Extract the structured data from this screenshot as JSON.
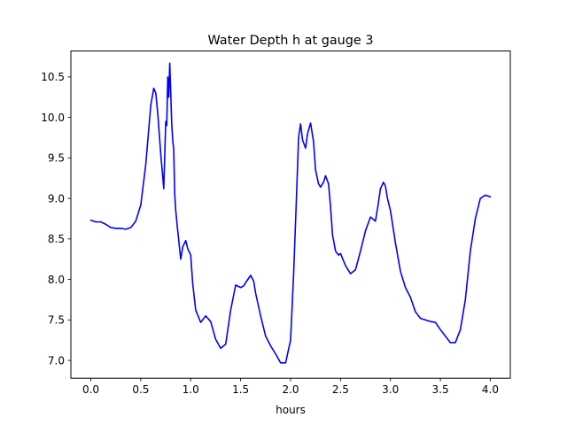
{
  "chart_data": {
    "type": "line",
    "title": "Water Depth h at gauge 3",
    "xlabel": "hours",
    "ylabel": "",
    "xlim": [
      -0.2,
      4.2
    ],
    "ylim": [
      6.78,
      10.82
    ],
    "xticks": [
      0.0,
      0.5,
      1.0,
      1.5,
      2.0,
      2.5,
      3.0,
      3.5,
      4.0
    ],
    "xtick_labels": [
      "0.0",
      "0.5",
      "1.0",
      "1.5",
      "2.0",
      "2.5",
      "3.0",
      "3.5",
      "4.0"
    ],
    "yticks": [
      7.0,
      7.5,
      8.0,
      8.5,
      9.0,
      9.5,
      10.0,
      10.5
    ],
    "ytick_labels": [
      "7.0",
      "7.5",
      "8.0",
      "8.5",
      "9.0",
      "9.5",
      "10.0",
      "10.5"
    ],
    "grid": false,
    "series": [
      {
        "color": "#0000ff",
        "x": [
          0.0,
          0.05,
          0.1,
          0.15,
          0.2,
          0.25,
          0.3,
          0.35,
          0.4,
          0.45,
          0.5,
          0.55,
          0.6,
          0.63,
          0.65,
          0.67,
          0.7,
          0.73,
          0.75,
          0.76,
          0.77,
          0.78,
          0.79,
          0.8,
          0.81,
          0.82,
          0.83,
          0.84,
          0.85,
          0.87,
          0.9,
          0.92,
          0.95,
          0.97,
          1.0,
          1.02,
          1.05,
          1.1,
          1.15,
          1.2,
          1.25,
          1.3,
          1.35,
          1.4,
          1.45,
          1.5,
          1.53,
          1.55,
          1.6,
          1.63,
          1.65,
          1.7,
          1.75,
          1.8,
          1.85,
          1.9,
          1.95,
          2.0,
          2.03,
          2.06,
          2.08,
          2.1,
          2.12,
          2.15,
          2.17,
          2.2,
          2.23,
          2.25,
          2.28,
          2.3,
          2.33,
          2.35,
          2.38,
          2.4,
          2.42,
          2.45,
          2.48,
          2.5,
          2.55,
          2.6,
          2.65,
          2.7,
          2.75,
          2.8,
          2.85,
          2.88,
          2.9,
          2.93,
          2.95,
          2.97,
          3.0,
          3.05,
          3.1,
          3.15,
          3.2,
          3.25,
          3.3,
          3.35,
          3.4,
          3.45,
          3.5,
          3.55,
          3.6,
          3.65,
          3.7,
          3.75,
          3.8,
          3.85,
          3.9,
          3.95,
          4.0
        ],
        "y": [
          8.73,
          8.71,
          8.71,
          8.68,
          8.64,
          8.63,
          8.63,
          8.62,
          8.64,
          8.72,
          8.92,
          9.42,
          10.15,
          10.36,
          10.3,
          10.05,
          9.55,
          9.12,
          9.95,
          9.9,
          10.5,
          10.25,
          10.67,
          10.3,
          9.92,
          9.72,
          9.6,
          9.05,
          8.85,
          8.6,
          8.25,
          8.4,
          8.48,
          8.38,
          8.3,
          7.95,
          7.62,
          7.47,
          7.55,
          7.48,
          7.26,
          7.15,
          7.2,
          7.62,
          7.93,
          7.9,
          7.92,
          7.96,
          8.05,
          7.98,
          7.83,
          7.55,
          7.3,
          7.18,
          7.08,
          6.97,
          6.97,
          7.25,
          8.05,
          9.05,
          9.75,
          9.92,
          9.72,
          9.62,
          9.8,
          9.93,
          9.7,
          9.35,
          9.18,
          9.14,
          9.2,
          9.28,
          9.18,
          8.9,
          8.55,
          8.35,
          8.3,
          8.32,
          8.17,
          8.07,
          8.12,
          8.35,
          8.6,
          8.77,
          8.72,
          8.95,
          9.12,
          9.2,
          9.15,
          9.0,
          8.85,
          8.45,
          8.1,
          7.9,
          7.78,
          7.6,
          7.52,
          7.5,
          7.48,
          7.47,
          7.38,
          7.3,
          7.22,
          7.22,
          7.38,
          7.75,
          8.35,
          8.75,
          9.0,
          9.04,
          9.02
        ]
      }
    ]
  }
}
